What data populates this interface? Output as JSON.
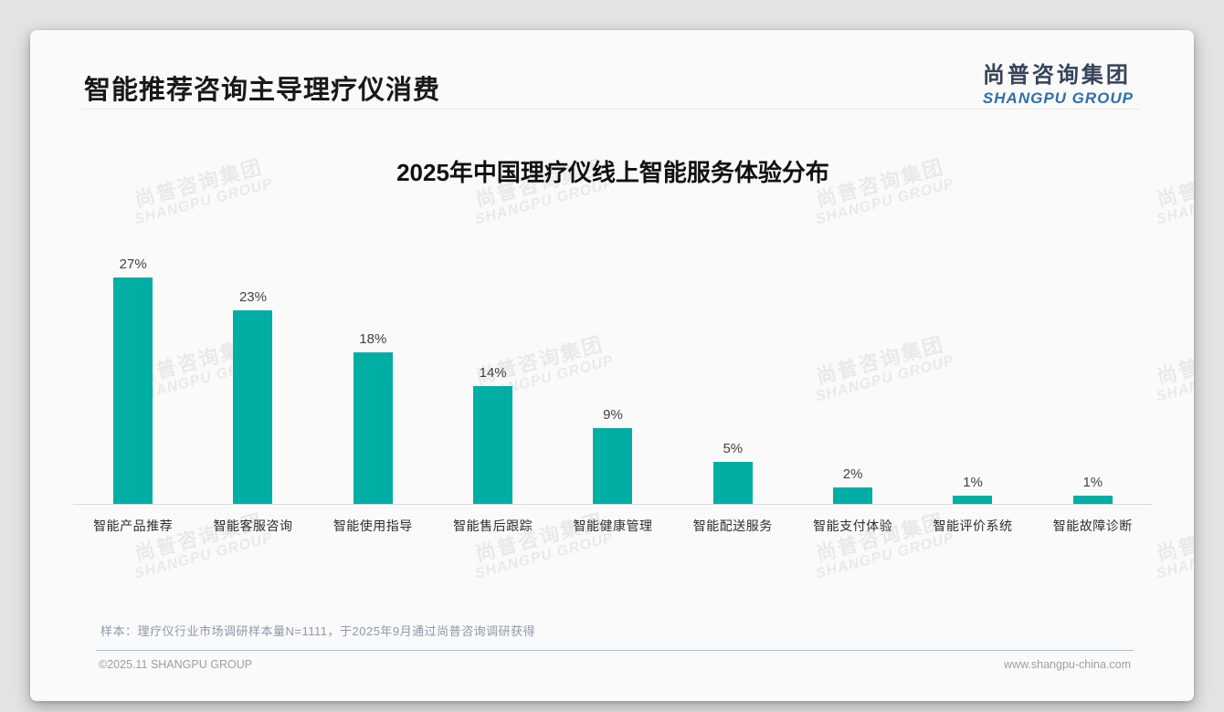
{
  "header": {
    "title": "智能推荐咨询主导理疗仪消费"
  },
  "logo": {
    "cn": "尚普咨询集团",
    "en": "SHANGPU GROUP"
  },
  "watermark": {
    "line1": "尚普咨询集团",
    "line2": "SHANGPU GROUP"
  },
  "chart_data": {
    "type": "bar",
    "title": "2025年中国理疗仪线上智能服务体验分布",
    "categories": [
      "智能产品推荐",
      "智能客服咨询",
      "智能使用指导",
      "智能售后跟踪",
      "智能健康管理",
      "智能配送服务",
      "智能支付体验",
      "智能评价系统",
      "智能故障诊断"
    ],
    "values": [
      27,
      23,
      18,
      14,
      9,
      5,
      2,
      1,
      1
    ],
    "unit": "%",
    "bar_color": "#00AEA4",
    "xlabel": "",
    "ylabel": "",
    "ylim": [
      0,
      30
    ],
    "grid": false,
    "legend": "none",
    "value_labels_position": "above bars"
  },
  "footnote": {
    "sample_note": "样本：理疗仪行业市场调研样本量N=1111，于2025年9月通过尚普咨询调研获得"
  },
  "footer": {
    "copyright": "©2025.11 SHANGPU GROUP",
    "website": "www.shangpu-china.com"
  },
  "colors": {
    "bar_teal": "#00AEA4",
    "logo_dark": "#36435a",
    "logo_blue": "#2f6fad",
    "note_gray_blue": "#8d99a9",
    "footer_gray": "#9aa0a6"
  }
}
